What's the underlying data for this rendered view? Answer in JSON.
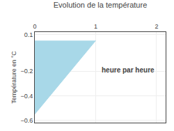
{
  "chart_data": {
    "type": "polygon",
    "title": "Evolution de la température",
    "ylabel": "Température en °C",
    "x": [
      0,
      0,
      1
    ],
    "values": [
      0.05,
      -0.55,
      0.05
    ],
    "color": "#a8d8e8",
    "xlim": [
      0,
      2.15
    ],
    "xticks": [
      0,
      1,
      2
    ],
    "ylim": [
      -0.62,
      0.12
    ],
    "yticks": [
      0.1,
      -0.2,
      -0.4,
      -0.6
    ],
    "grid": true,
    "annotations": [
      {
        "text": "heure par heure",
        "x": 1.08,
        "y": -0.19
      }
    ]
  }
}
